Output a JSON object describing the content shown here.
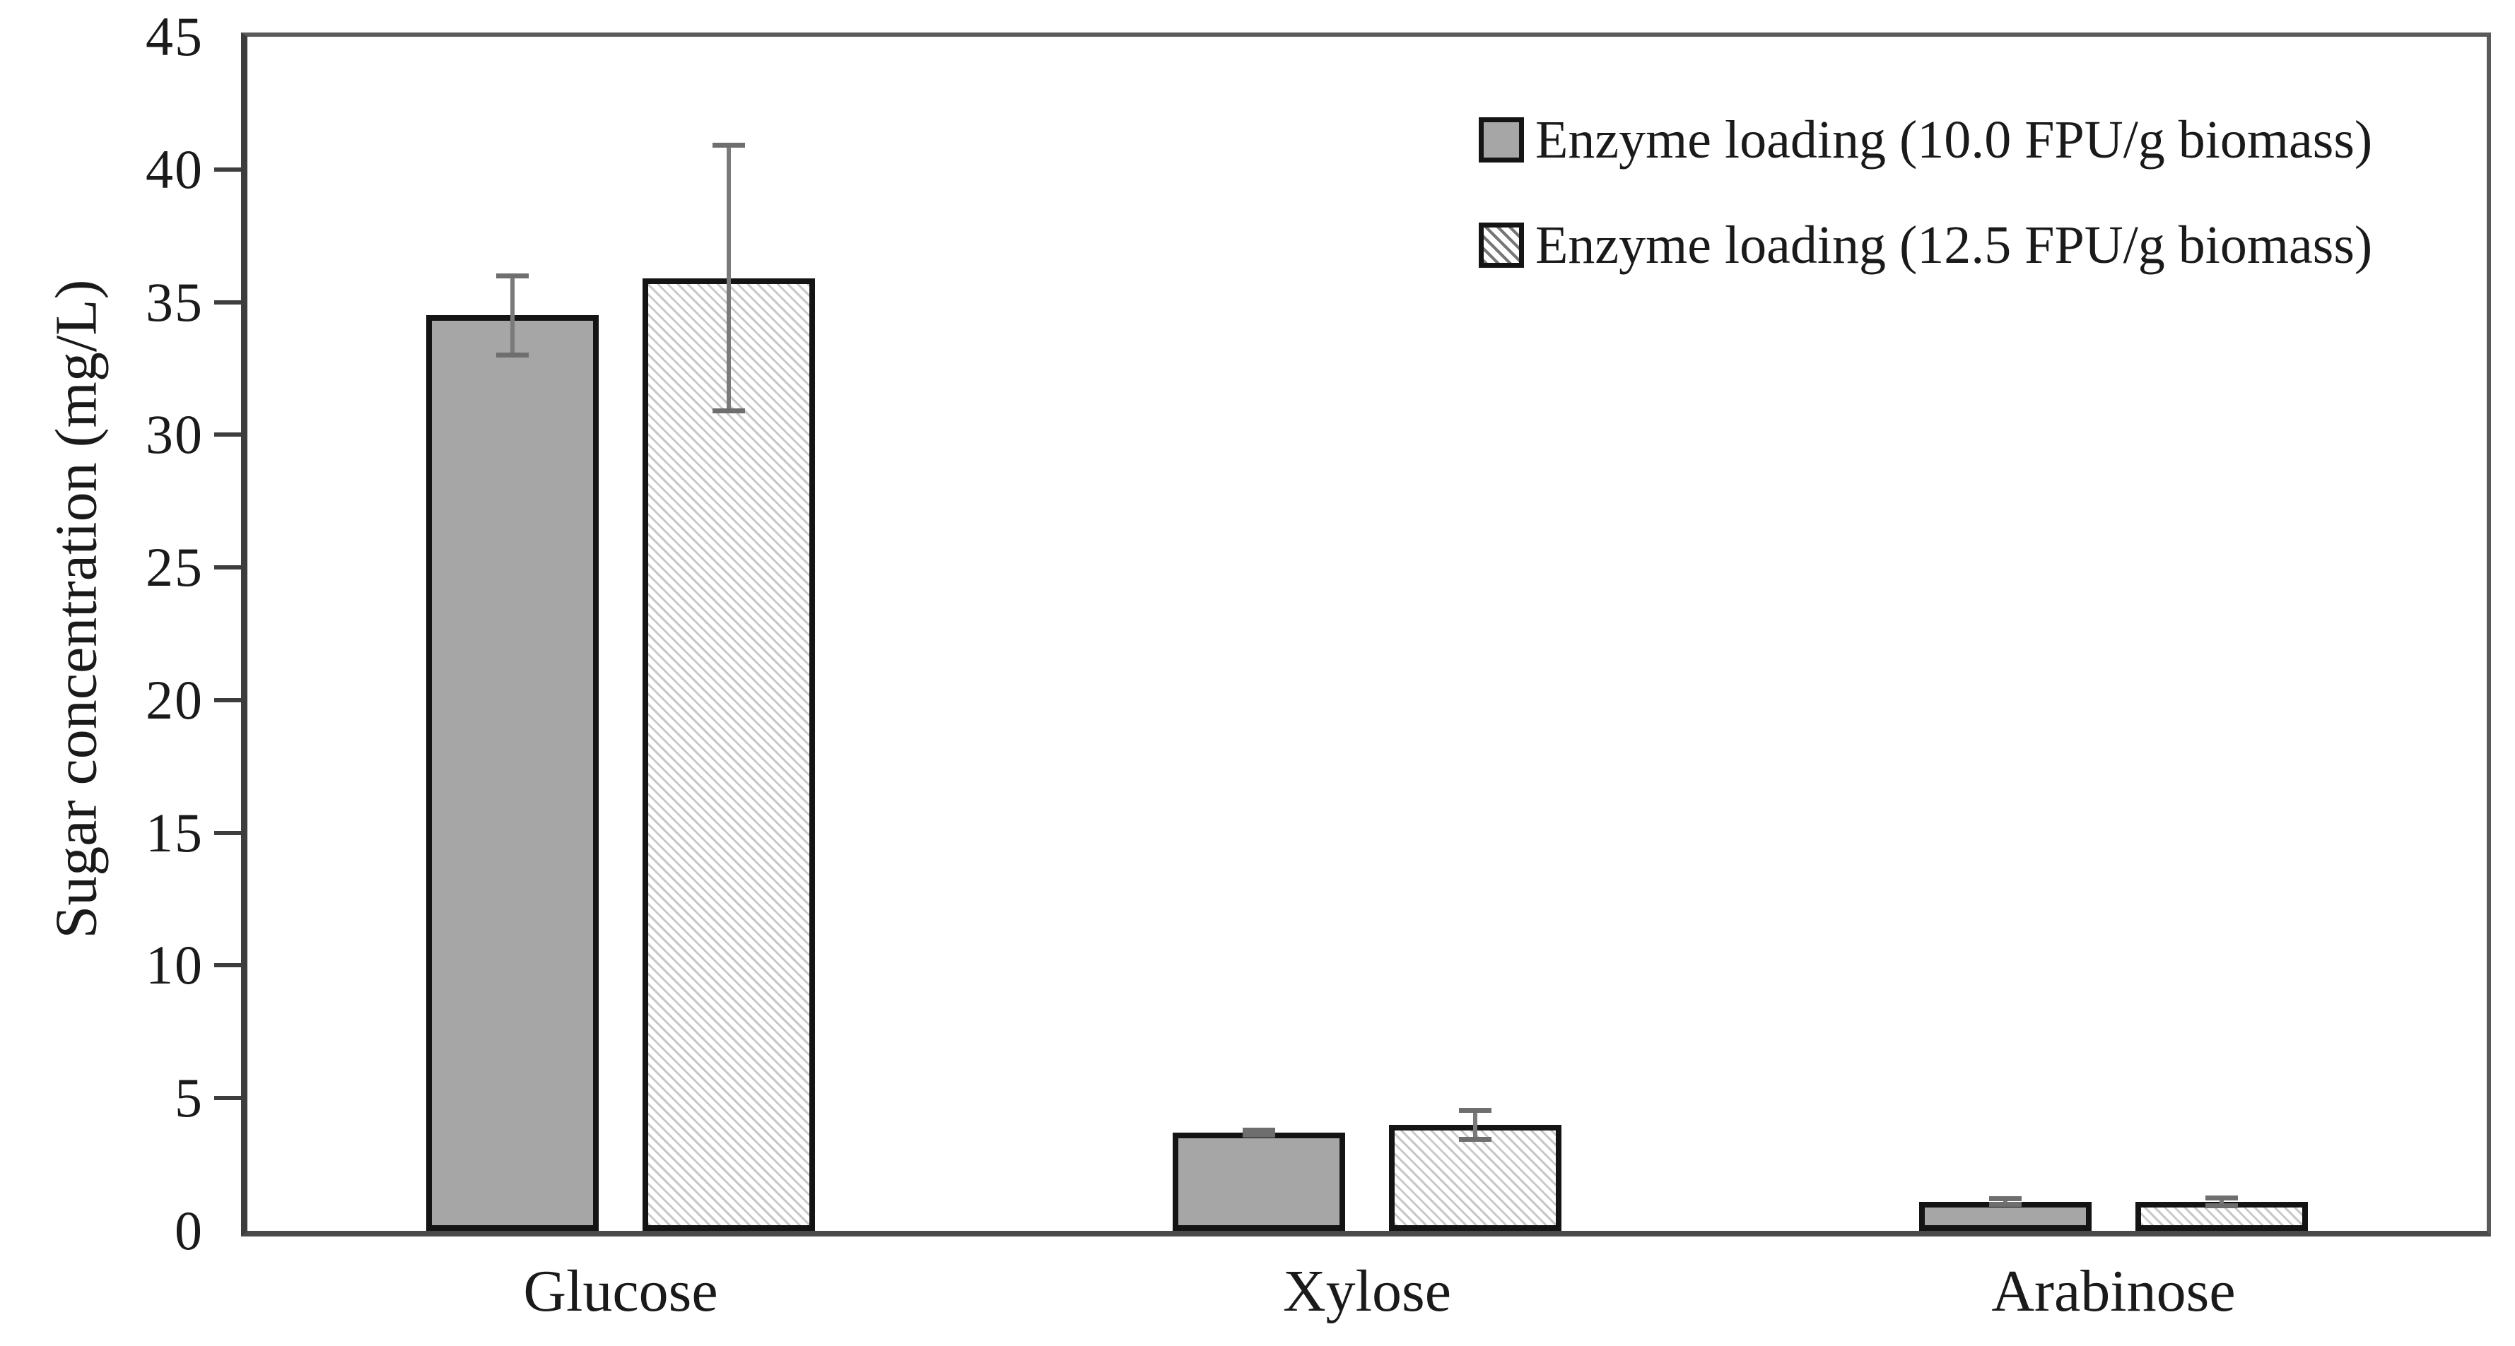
{
  "chart_data": {
    "type": "bar",
    "title": "",
    "xlabel": "",
    "ylabel": "Sugar concentration (mg/L)",
    "ylim": [
      0,
      45
    ],
    "ytick_step": 5,
    "yticks": [
      45,
      40,
      35,
      30,
      25,
      20,
      15,
      10,
      5,
      0
    ],
    "categories": [
      "Glucose",
      "Xylose",
      "Arabinose"
    ],
    "series": [
      {
        "name": "Enzyme loading (10.0 FPU/g biomass)",
        "style": "solid-gray",
        "values": [
          34.5,
          3.7,
          1.1
        ],
        "errors": [
          1.5,
          0.1,
          0.1
        ]
      },
      {
        "name": "Enzyme loading (12.5 FPU/g biomass)",
        "style": "hatched",
        "values": [
          35.9,
          4.0,
          1.1
        ],
        "errors": [
          5.0,
          0.55,
          0.15
        ]
      }
    ],
    "legend_position": "top-right",
    "grid": false,
    "colors": {
      "solid_fill": "#a6a6a6",
      "hatch_line": "#c8c8c8",
      "bar_border": "#141414",
      "error_bar": "#7a7a7a",
      "axis": "#4a4a4a",
      "text": "#1a1a1a",
      "background": "#ffffff"
    }
  }
}
